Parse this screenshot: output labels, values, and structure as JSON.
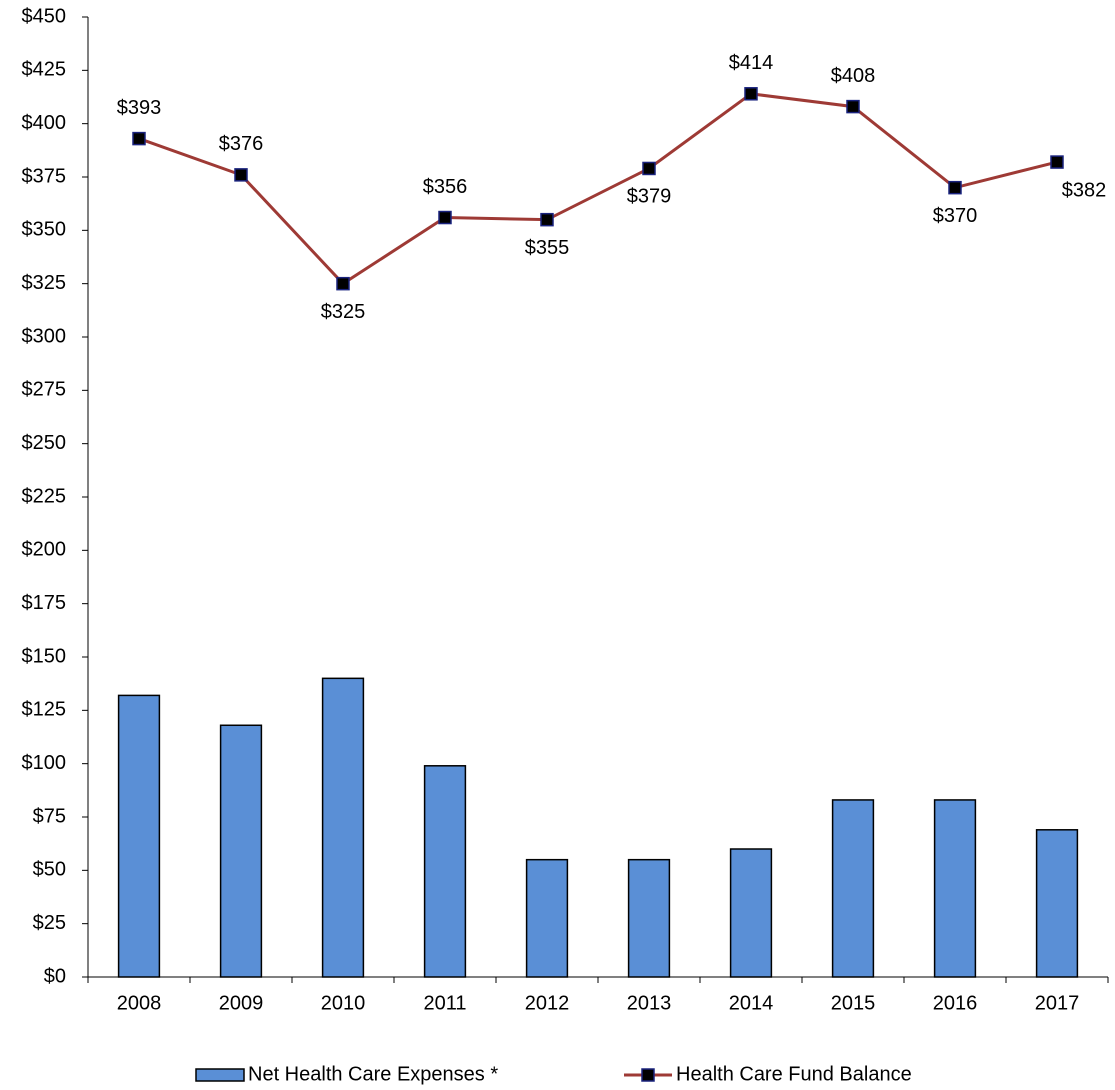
{
  "chart_data": {
    "type": "combo",
    "categories": [
      "2008",
      "2009",
      "2010",
      "2011",
      "2012",
      "2013",
      "2014",
      "2015",
      "2016",
      "2017"
    ],
    "series": [
      {
        "name": "Net Health Care Expenses *",
        "type": "bar",
        "color": "#5a8fd6",
        "values": [
          132,
          118,
          140,
          99,
          55,
          55,
          60,
          83,
          83,
          69
        ]
      },
      {
        "name": "Health Care Fund Balance",
        "type": "line",
        "color": "#9e3a35",
        "values": [
          393,
          376,
          325,
          356,
          355,
          379,
          414,
          408,
          370,
          382
        ],
        "value_labels": [
          "$393",
          "$376",
          "$325",
          "$356",
          "$355",
          "$379",
          "$414",
          "$408",
          "$370",
          "$382"
        ]
      }
    ],
    "ylim": [
      0,
      450
    ],
    "yticks": [
      {
        "value": 0,
        "label": "$0"
      },
      {
        "value": 25,
        "label": "$25"
      },
      {
        "value": 50,
        "label": "$50"
      },
      {
        "value": 75,
        "label": "$75"
      },
      {
        "value": 100,
        "label": "$100"
      },
      {
        "value": 125,
        "label": "$125"
      },
      {
        "value": 150,
        "label": "$150"
      },
      {
        "value": 175,
        "label": "$175"
      },
      {
        "value": 200,
        "label": "$200"
      },
      {
        "value": 225,
        "label": "$225"
      },
      {
        "value": 250,
        "label": "$250"
      },
      {
        "value": 275,
        "label": "$275"
      },
      {
        "value": 300,
        "label": "$300"
      },
      {
        "value": 325,
        "label": "$325"
      },
      {
        "value": 350,
        "label": "$350"
      },
      {
        "value": 375,
        "label": "$375"
      },
      {
        "value": 400,
        "label": "$400"
      },
      {
        "value": 425,
        "label": "$425"
      },
      {
        "value": 450,
        "label": "$450"
      }
    ],
    "grid": false,
    "legend": "bottom"
  }
}
